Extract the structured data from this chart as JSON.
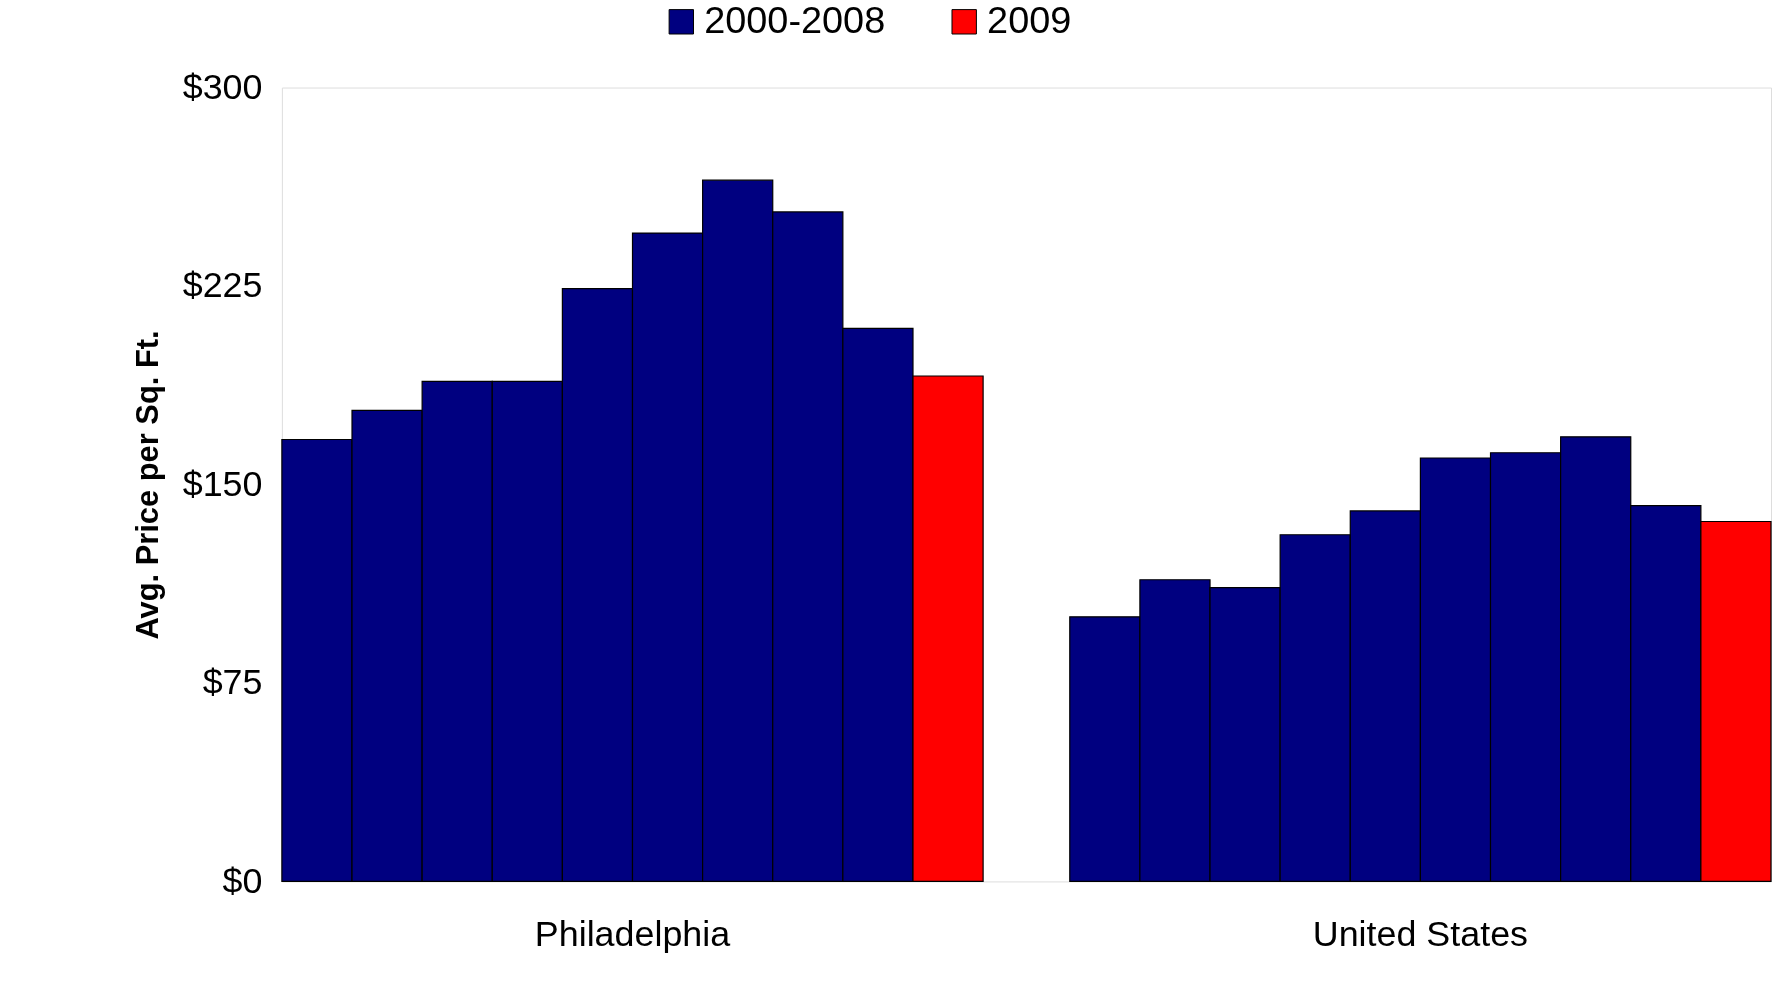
{
  "chart_data": {
    "type": "bar",
    "ylabel": "Avg. Price per Sq. Ft.",
    "categories": [
      "Philadelphia",
      "United States"
    ],
    "series": [
      {
        "name": "2000-2008",
        "color": "#000080",
        "values": [
          167,
          100
        ]
      },
      {
        "color": "#000080",
        "values": [
          178,
          114
        ]
      },
      {
        "color": "#000080",
        "values": [
          189,
          111
        ]
      },
      {
        "color": "#000080",
        "values": [
          189,
          131
        ]
      },
      {
        "color": "#000080",
        "values": [
          224,
          140
        ]
      },
      {
        "color": "#000080",
        "values": [
          245,
          160
        ]
      },
      {
        "color": "#000080",
        "values": [
          265,
          162
        ]
      },
      {
        "color": "#000080",
        "values": [
          253,
          168
        ]
      },
      {
        "color": "#000080",
        "values": [
          209,
          142
        ]
      },
      {
        "name": "2009",
        "color": "#ff0000",
        "values": [
          191,
          136
        ]
      }
    ],
    "ylim": [
      0,
      300
    ],
    "yticks": [
      {
        "value": 0,
        "label": "$0"
      },
      {
        "value": 75,
        "label": "$75"
      },
      {
        "value": 150,
        "label": "$150"
      },
      {
        "value": 225,
        "label": "$225"
      },
      {
        "value": 300,
        "label": "$300"
      }
    ],
    "legend": "top",
    "grid": false
  }
}
